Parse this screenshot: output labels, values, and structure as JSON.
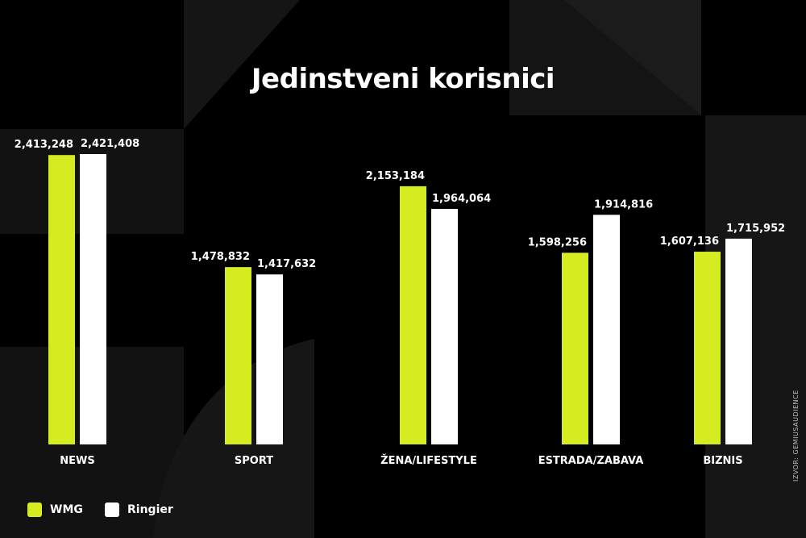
{
  "title": "Jedinstveni korisnici",
  "source": "IZVOR: GEMIUSAUDIENCE",
  "colors": {
    "background": "#000000",
    "wmg": "#d4ec20",
    "ringier": "#ffffff",
    "shape": "#1a1a1a"
  },
  "legend": [
    {
      "label": "WMG",
      "color": "#d4ec20"
    },
    {
      "label": "Ringier",
      "color": "#ffffff"
    }
  ],
  "chart_data": {
    "type": "bar",
    "title": "Jedinstveni korisnici",
    "categories": [
      "NEWS",
      "SPORT",
      "ŽENA/LIFESTYLE",
      "ESTRADA/ZABAVA",
      "BIZNIS"
    ],
    "series": [
      {
        "name": "WMG",
        "values": [
          2413248,
          1478832,
          2153184,
          1598256,
          1607136
        ],
        "labels": [
          "2,413,248",
          "1,478,832",
          "2,153,184",
          "1,598,256",
          "1,607,136"
        ]
      },
      {
        "name": "Ringier",
        "values": [
          2421408,
          1417632,
          1964064,
          1914816,
          1715952
        ],
        "labels": [
          "2,421,408",
          "1,417,632",
          "1,964,064",
          "1,914,816",
          "1,715,952"
        ]
      }
    ],
    "xlabel": "",
    "ylabel": "",
    "grid": false,
    "legend_position": "bottom-left"
  }
}
